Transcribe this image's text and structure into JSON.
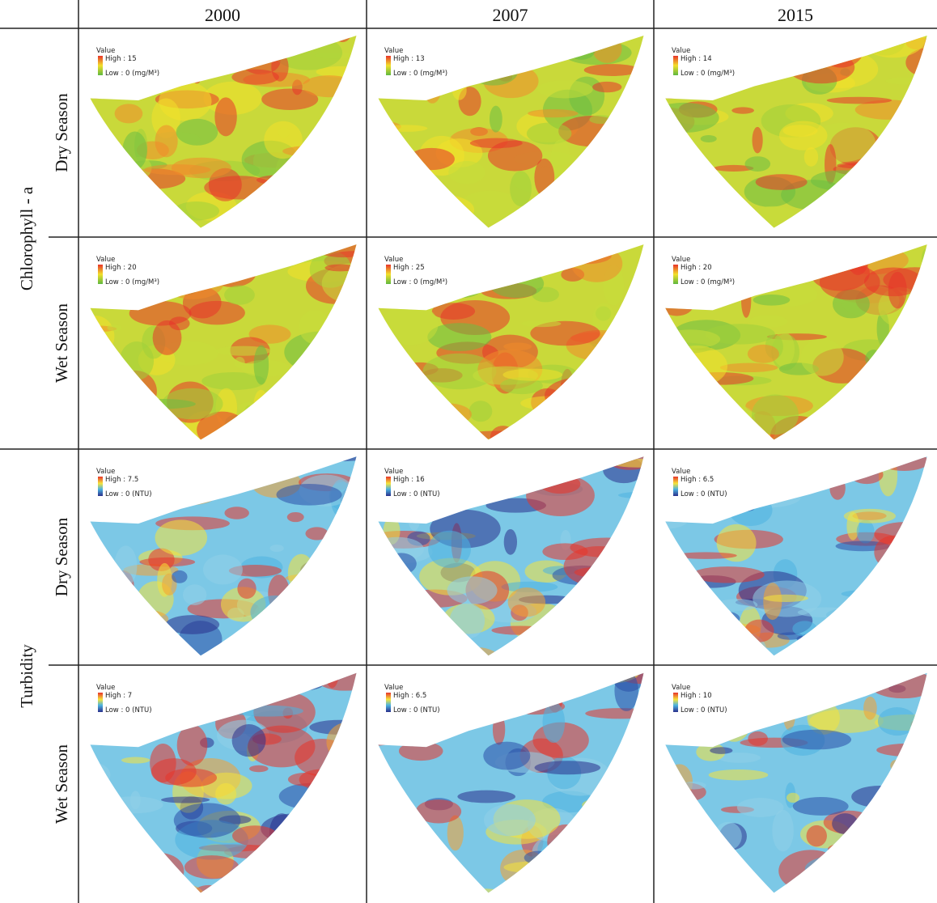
{
  "columns": [
    "2000",
    "2007",
    "2015"
  ],
  "legend_title": "Value",
  "groups": [
    {
      "label": "Chlorophyll - a",
      "rows": [
        {
          "label": "Dry Season",
          "maps": [
            {
              "high": "High : 15",
              "low": "Low : 0",
              "unit": "(mg/M³)"
            },
            {
              "high": "High : 13",
              "low": "Low : 0",
              "unit": "(mg/M³)"
            },
            {
              "high": "High : 14",
              "low": "Low : 0",
              "unit": "(mg/M³)"
            }
          ]
        },
        {
          "label": "Wet Season",
          "maps": [
            {
              "high": "High : 20",
              "low": "Low : 0",
              "unit": "(mg/M³)"
            },
            {
              "high": "High : 25",
              "low": "Low : 0",
              "unit": "(mg/M³)"
            },
            {
              "high": "High : 20",
              "low": "Low : 0",
              "unit": "(mg/M³)"
            }
          ]
        }
      ]
    },
    {
      "label": "Turbidity",
      "rows": [
        {
          "label": "Dry Season",
          "maps": [
            {
              "high": "High : 7.5",
              "low": "Low : 0",
              "unit": "(NTU)"
            },
            {
              "high": "High : 16",
              "low": "Low : 0",
              "unit": "(NTU)"
            },
            {
              "high": "High : 6.5",
              "low": "Low : 0",
              "unit": "(NTU)"
            }
          ]
        },
        {
          "label": "Wet Season",
          "maps": [
            {
              "high": "High : 7",
              "low": "Low : 0",
              "unit": "(NTU)"
            },
            {
              "high": "High : 6.5",
              "low": "Low : 0",
              "unit": "(NTU)"
            },
            {
              "high": "High : 10",
              "low": "Low : 0",
              "unit": "(NTU)"
            }
          ]
        }
      ]
    }
  ]
}
